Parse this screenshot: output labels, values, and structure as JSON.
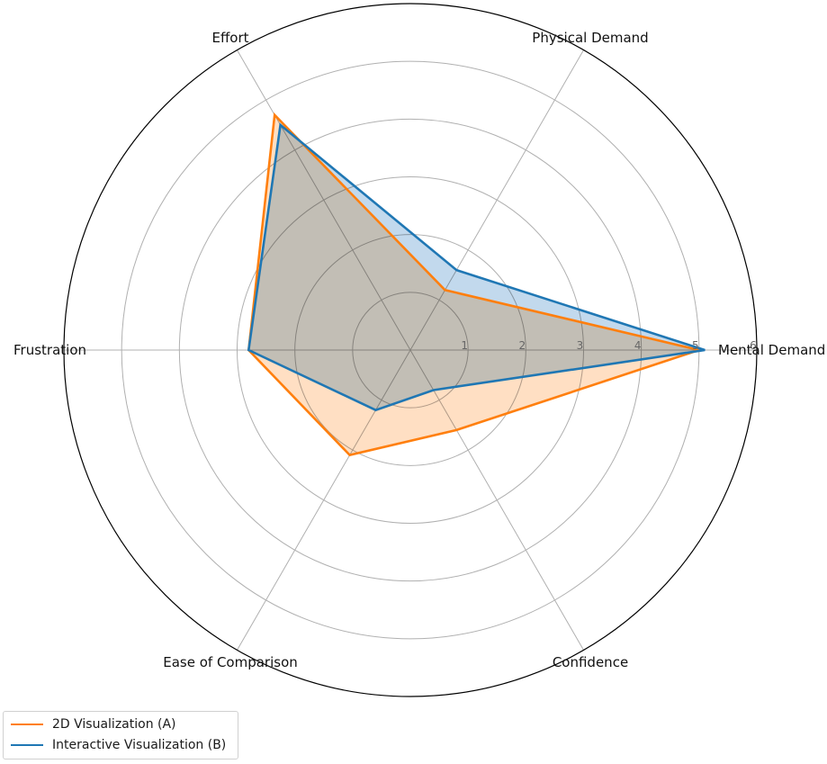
{
  "chart_data": {
    "type": "radar",
    "axes": [
      "Mental Demand",
      "Physical Demand",
      "Effort",
      "Frustration",
      "Ease of Comparison",
      "Confidence"
    ],
    "radial_ticks": [
      "1",
      "2",
      "3",
      "4",
      "5",
      "6"
    ],
    "rlim": [
      0,
      6
    ],
    "grid": true,
    "legend_position": "bottom-left",
    "series": [
      {
        "name": "2D Visualization (A)",
        "color": "#ff7f0e",
        "fill": "#ffd9b8",
        "values": [
          5.0,
          1.2,
          4.7,
          2.8,
          2.1,
          1.6
        ]
      },
      {
        "name": "Interactive Visualization (B)",
        "color": "#1f77b4",
        "fill": "#b7d2ea",
        "values": [
          5.1,
          1.6,
          4.5,
          2.8,
          1.2,
          0.8
        ]
      }
    ]
  }
}
